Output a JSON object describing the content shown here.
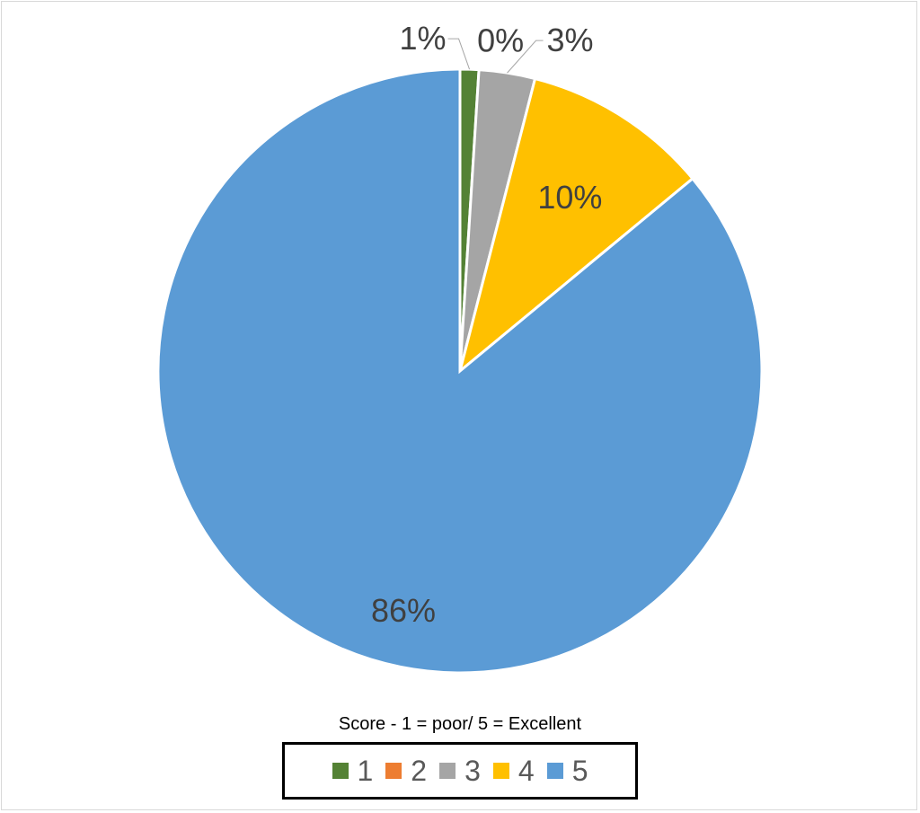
{
  "chart_data": {
    "type": "pie",
    "title": "",
    "legend_title": "Score - 1 = poor/ 5 = Excellent",
    "legend_position": "bottom",
    "start_angle_deg": 0,
    "direction": "clockwise",
    "slices": [
      {
        "name": "1",
        "value": 1,
        "label": "1%",
        "color": "#548235"
      },
      {
        "name": "2",
        "value": 0,
        "label": "0%",
        "color": "#ED7D31"
      },
      {
        "name": "3",
        "value": 3,
        "label": "3%",
        "color": "#A5A5A5"
      },
      {
        "name": "4",
        "value": 10,
        "label": "10%",
        "color": "#FFC000"
      },
      {
        "name": "5",
        "value": 86,
        "label": "86%",
        "color": "#5B9BD5"
      }
    ]
  }
}
